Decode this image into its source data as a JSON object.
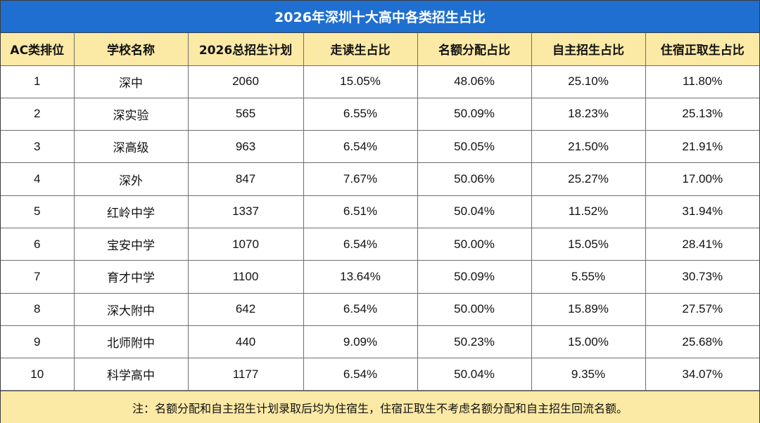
{
  "title": "2026年深圳十大高中各类招生占比",
  "colors": {
    "title_bg": "#1f6fd0",
    "header_bg": "#fbe9a6",
    "footer_bg": "#fbe9a6"
  },
  "headers": [
    "AC类排位",
    "学校名称",
    "2026总招生计划",
    "走读生占比",
    "名额分配占比",
    "自主招生占比",
    "住宿正取生占比"
  ],
  "rows": [
    [
      "1",
      "深中",
      "2060",
      "15.05%",
      "48.06%",
      "25.10%",
      "11.80%"
    ],
    [
      "2",
      "深实验",
      "565",
      "6.55%",
      "50.09%",
      "18.23%",
      "25.13%"
    ],
    [
      "3",
      "深高级",
      "963",
      "6.54%",
      "50.05%",
      "21.50%",
      "21.91%"
    ],
    [
      "4",
      "深外",
      "847",
      "7.67%",
      "50.06%",
      "25.27%",
      "17.00%"
    ],
    [
      "5",
      "红岭中学",
      "1337",
      "6.51%",
      "50.04%",
      "11.52%",
      "31.94%"
    ],
    [
      "6",
      "宝安中学",
      "1070",
      "6.54%",
      "50.00%",
      "15.05%",
      "28.41%"
    ],
    [
      "7",
      "育才中学",
      "1100",
      "13.64%",
      "50.09%",
      "5.55%",
      "30.73%"
    ],
    [
      "8",
      "深大附中",
      "642",
      "6.54%",
      "50.00%",
      "15.89%",
      "27.57%"
    ],
    [
      "9",
      "北师附中",
      "440",
      "9.09%",
      "50.23%",
      "15.00%",
      "25.68%"
    ],
    [
      "10",
      "科学高中",
      "1177",
      "6.54%",
      "50.04%",
      "9.35%",
      "34.07%"
    ]
  ],
  "note": "注：名额分配和自主招生计划录取后均为住宿生，住宿正取生不考虑名额分配和自主招生回流名额。"
}
